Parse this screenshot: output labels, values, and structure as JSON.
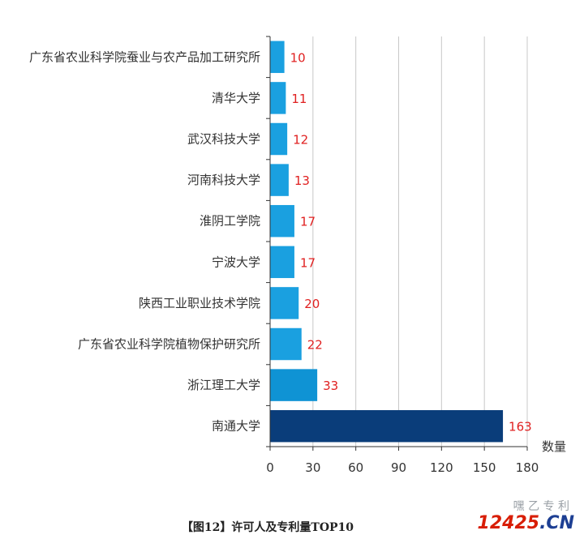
{
  "chart_data": {
    "type": "bar",
    "orientation": "horizontal",
    "categories": [
      "广东省农业科学院蚕业与农产品加工研究所",
      "清华大学",
      "武汉科技大学",
      "河南科技大学",
      "淮阴工学院",
      "宁波大学",
      "陕西工业职业技术学院",
      "广东省农业科学院植物保护研究所",
      "浙江理工大学",
      "南通大学"
    ],
    "values": [
      10,
      11,
      12,
      13,
      17,
      17,
      20,
      22,
      33,
      163
    ],
    "xlabel": "数量",
    "xlim": [
      0,
      180
    ],
    "xticks": [
      0,
      30,
      60,
      90,
      120,
      150,
      180
    ],
    "grid": "vertical",
    "colors": {
      "bar": "#1aa0e0",
      "bar_mid": "#0f93d4",
      "bar_top": "#0a3d7a",
      "value_label": "#e02020"
    }
  },
  "caption": "【图12】许可人及专利量TOP10",
  "watermark": {
    "source": "嘿 乙 专 利",
    "site_number": "12425",
    "site_domain": ".CN"
  }
}
